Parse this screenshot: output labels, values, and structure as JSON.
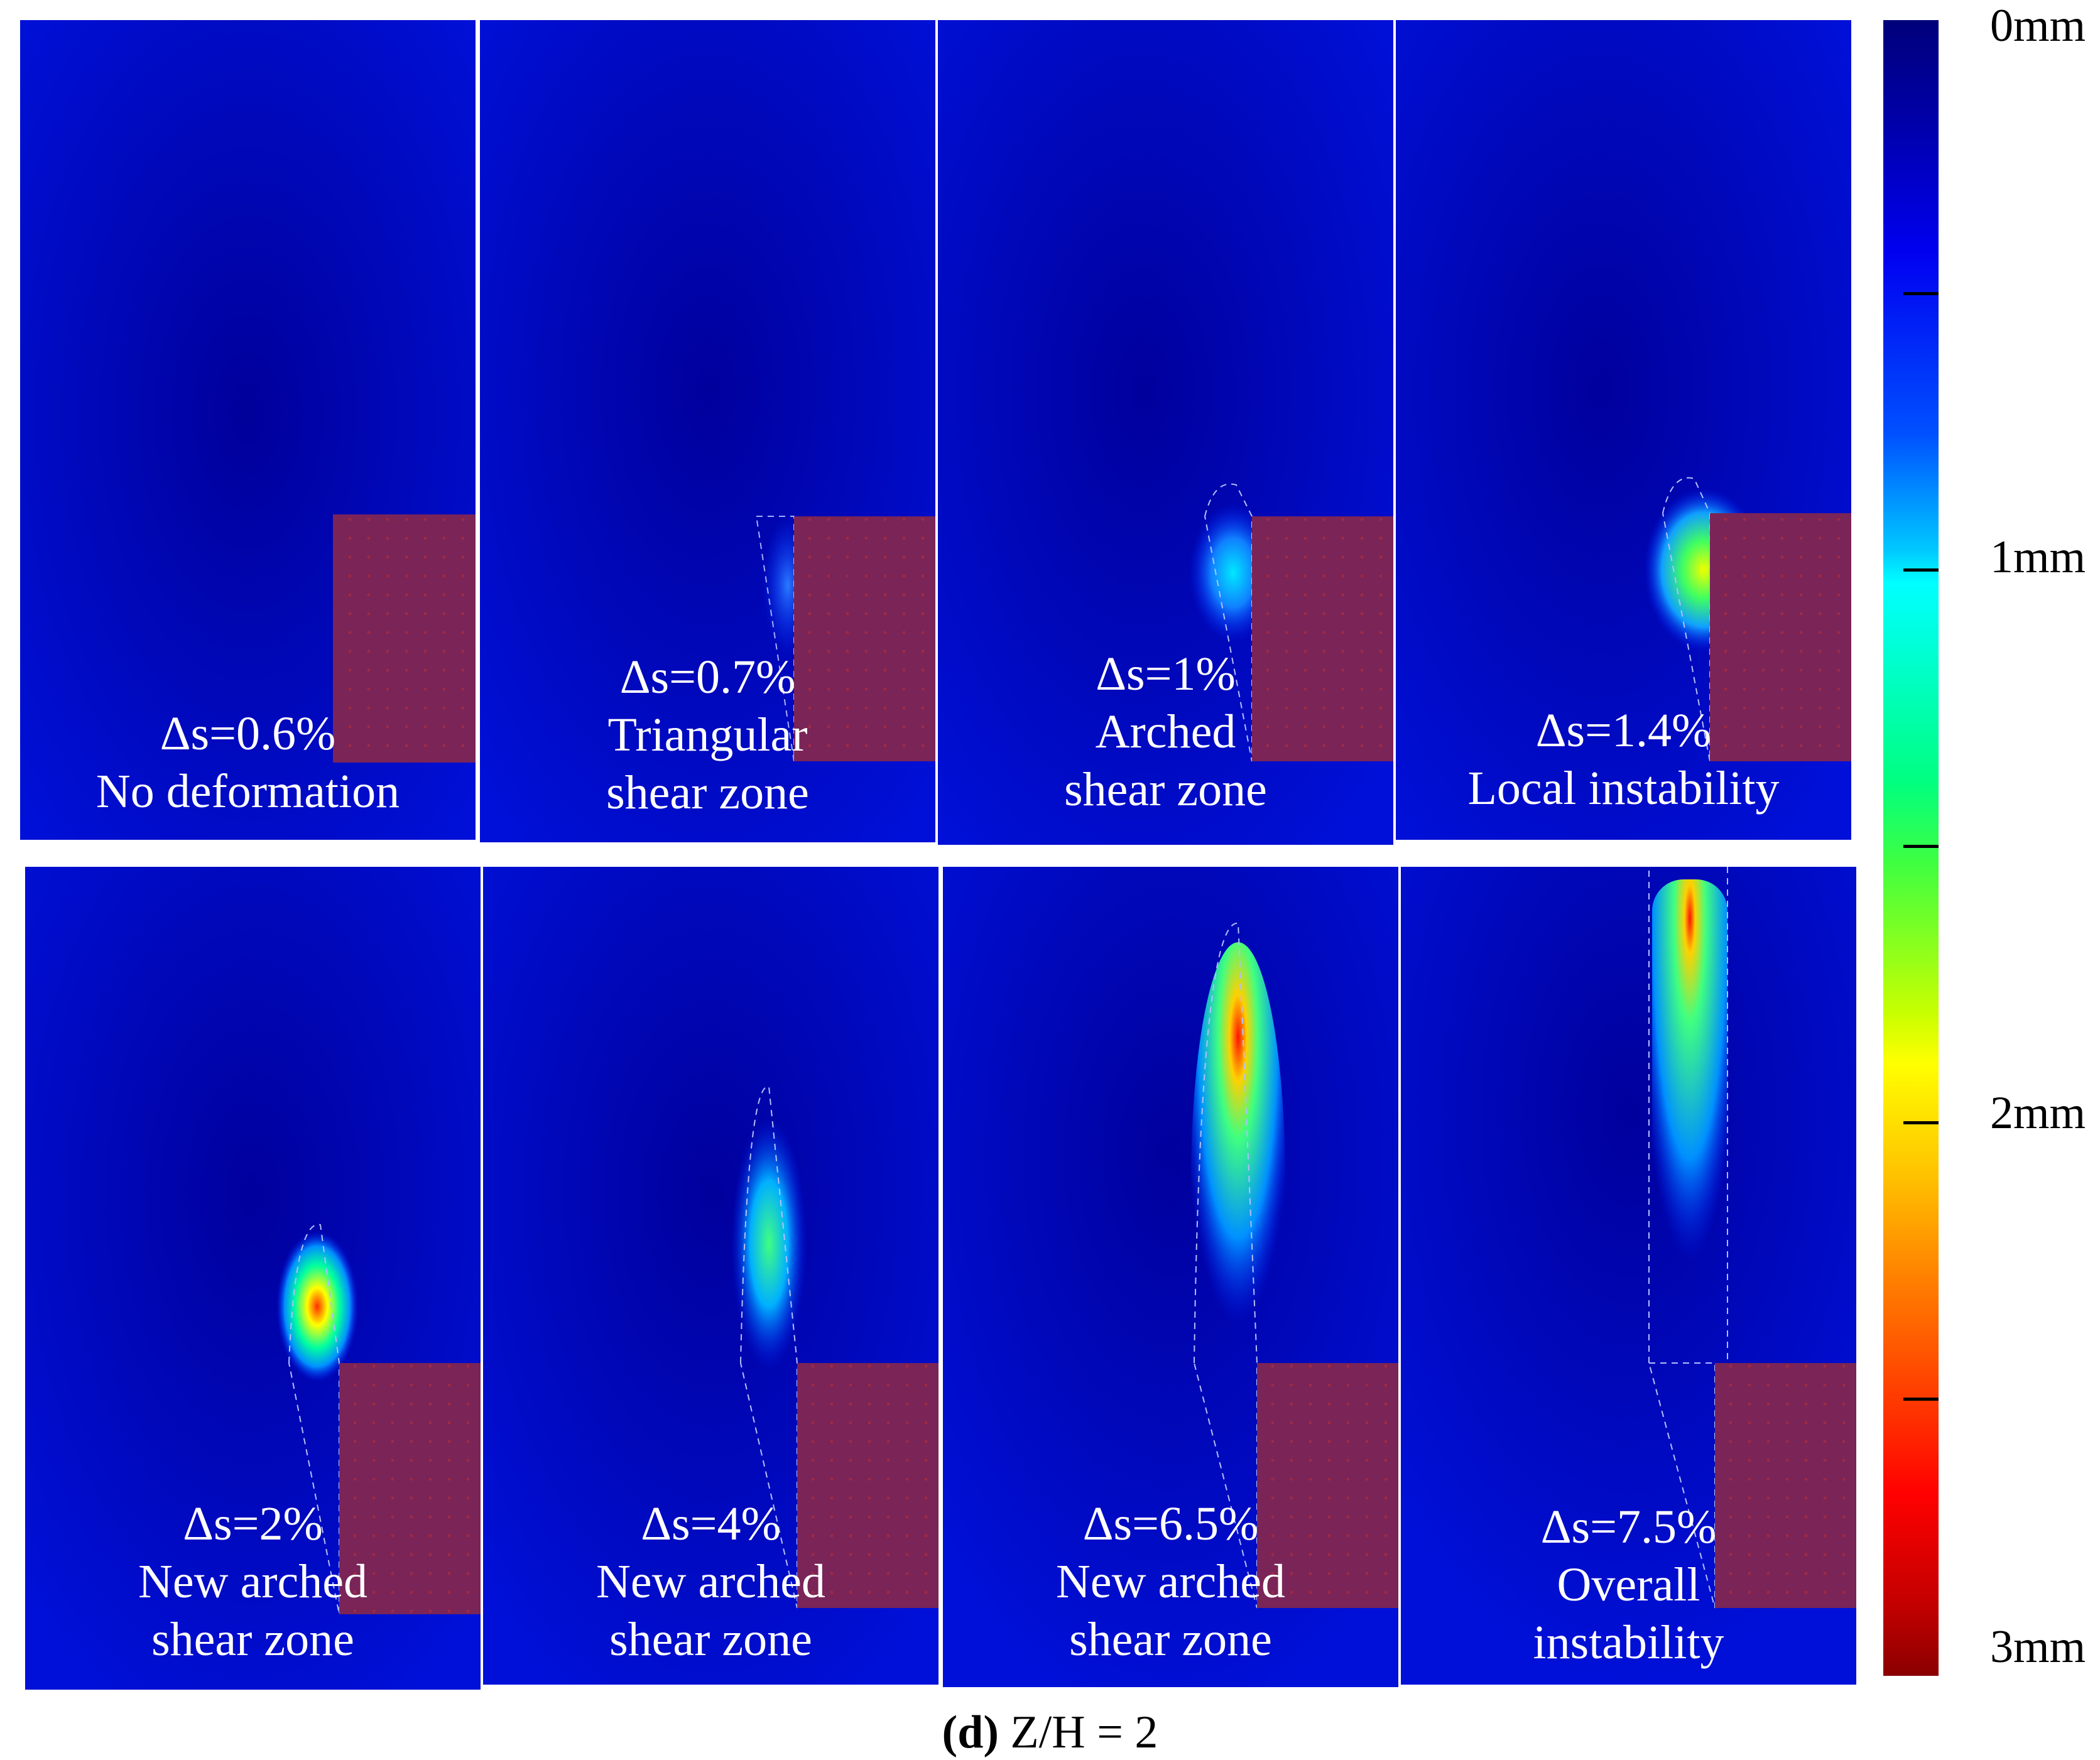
{
  "panels": [
    {
      "line1": "Δs=0.6%",
      "line2": "No deformation",
      "line3": ""
    },
    {
      "line1": "Δs=0.7%",
      "line2": "Triangular",
      "line3": "shear zone"
    },
    {
      "line1": "Δs=1%",
      "line2": "Arched",
      "line3": "shear zone"
    },
    {
      "line1": "Δs=1.4%",
      "line2": "Local instability",
      "line3": ""
    },
    {
      "line1": "Δs=2%",
      "line2": "New arched",
      "line3": "shear zone"
    },
    {
      "line1": "Δs=4%",
      "line2": "New arched",
      "line3": "shear zone"
    },
    {
      "line1": "Δs=6.5%",
      "line2": "New arched",
      "line3": "shear zone"
    },
    {
      "line1": "Δs=7.5%",
      "line2": "Overall",
      "line3": "instability"
    }
  ],
  "colorbar": {
    "labels": [
      "0mm",
      "1mm",
      "2mm",
      "3mm"
    ],
    "min": 0,
    "max": 3,
    "unit": "mm"
  },
  "caption": {
    "bold": "(d)",
    "rest": " Z/H = 2"
  }
}
